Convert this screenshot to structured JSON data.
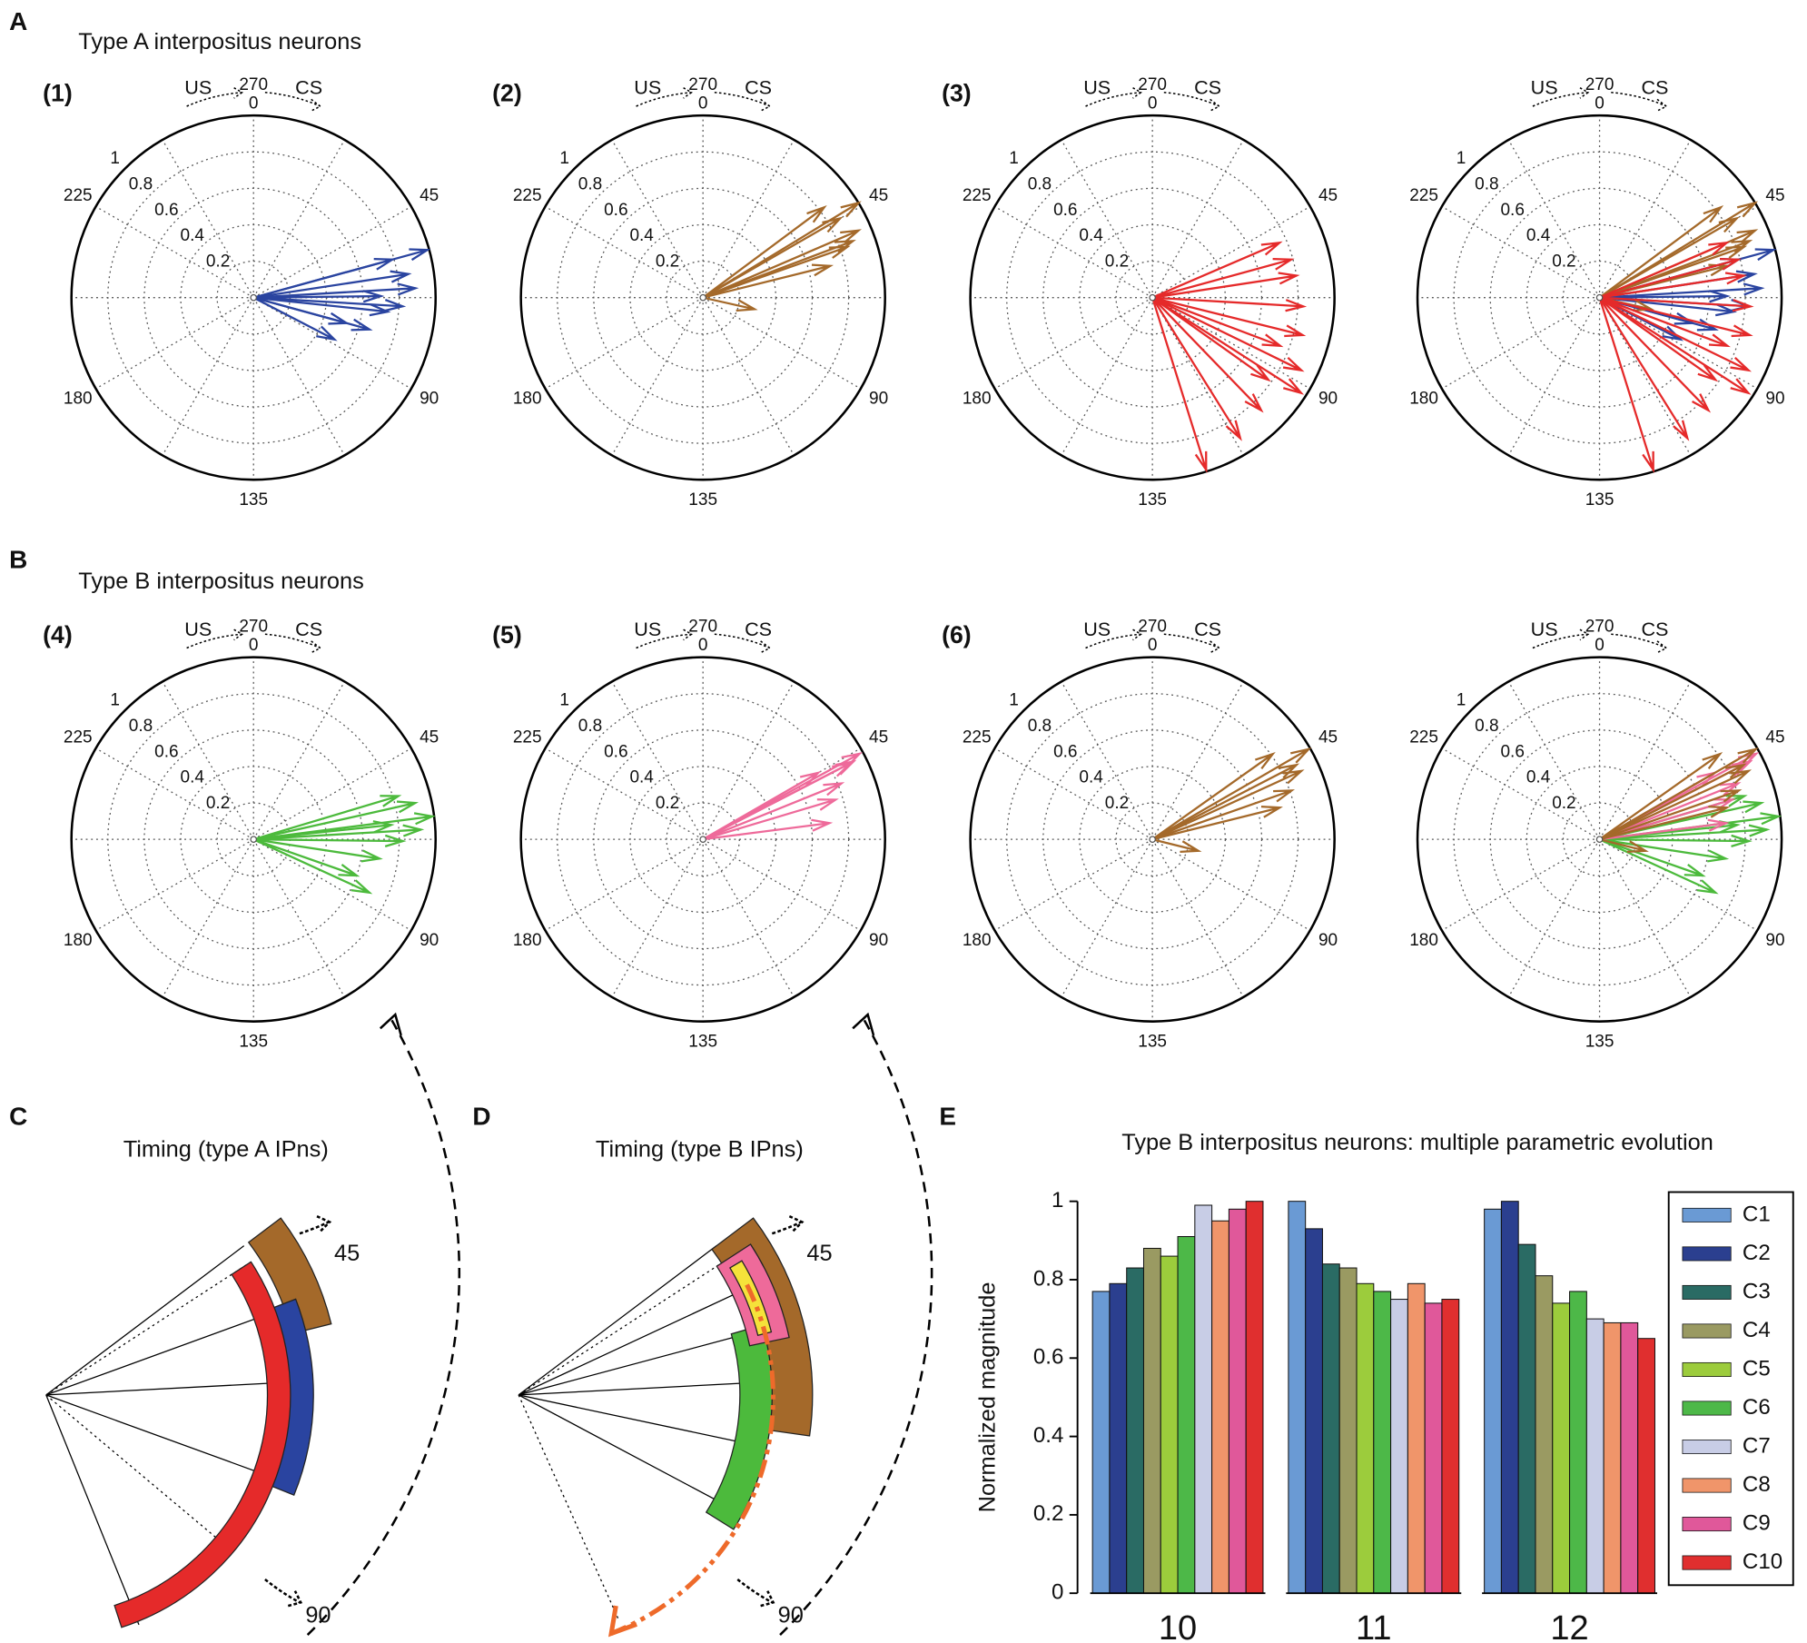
{
  "panel_labels": [
    "A",
    "B",
    "C",
    "D",
    "E"
  ],
  "polar_axes": {
    "thetalim": [
      0,
      270
    ],
    "theta_ticks": [
      0,
      45,
      90,
      135,
      180,
      225,
      270
    ],
    "rlim": [
      0,
      1
    ],
    "rticks": [
      0.2,
      0.4,
      0.6,
      0.8,
      1
    ],
    "direction_labels": [
      "US",
      "CS"
    ]
  },
  "rows": [
    {
      "title": "Type A interpositus neurons",
      "plots": [
        {
          "label": "(1)",
          "color": "#2a44a0",
          "angles": [
            56,
            61,
            70,
            72,
            88,
            79,
            65,
            56,
            67,
            79
          ],
          "magnitudes": [
            0.99,
            0.86,
            0.82,
            0.74,
            0.5,
            0.53,
            0.89,
            0.79,
            0.7,
            0.66
          ]
        },
        {
          "label": "(2)",
          "color": "#a4692a",
          "angles": [
            44,
            50,
            53,
            57,
            40,
            45,
            77,
            52
          ],
          "magnitudes": [
            1.0,
            0.93,
            0.84,
            0.72,
            0.83,
            0.87,
            0.29,
            0.88
          ]
        },
        {
          "label": "(3)",
          "color": "#e52a2a",
          "angles": [
            122,
            111,
            102,
            87,
            78,
            70,
            61,
            50,
            56,
            83,
            94,
            92
          ],
          "magnitudes": [
            0.99,
            0.91,
            0.86,
            0.91,
            0.85,
            0.83,
            0.8,
            0.76,
            0.79,
            0.75,
            0.78,
            0.97
          ]
        }
      ]
    },
    {
      "title": "Type B interpositus neurons",
      "plots": [
        {
          "label": "(4)",
          "color": "#4cba3c",
          "angles": [
            62,
            58,
            55,
            68,
            74,
            86,
            82,
            63,
            65
          ],
          "magnitudes": [
            0.99,
            0.91,
            0.83,
            0.82,
            0.7,
            0.7,
            0.6,
            0.76,
            0.92
          ]
        },
        {
          "label": "(5)",
          "color": "#ee6a9a",
          "angles": [
            46,
            47,
            51,
            55,
            62,
            47,
            45
          ],
          "magnitudes": [
            0.98,
            0.91,
            0.82,
            0.76,
            0.7,
            0.93,
            0.73
          ]
        },
        {
          "label": "(6)",
          "color": "#a4692a",
          "angles": [
            45,
            49,
            53,
            57,
            41,
            78,
            47
          ],
          "magnitudes": [
            0.99,
            0.9,
            0.81,
            0.72,
            0.81,
            0.26,
            0.89
          ]
        }
      ]
    }
  ],
  "timing": [
    {
      "title": "Timing (type A IPns)",
      "labels": [
        "45",
        "90"
      ]
    },
    {
      "title": "Timing (type B IPns)",
      "labels": [
        "45",
        "90"
      ]
    }
  ],
  "chart_data": {
    "type": "bar",
    "title": "Type B interpositus neurons: multiple parametric evolution",
    "ylabel": "Normalized magnitude",
    "categories": [
      "10",
      "11",
      "12"
    ],
    "ylim": [
      0,
      1
    ],
    "yticks": [
      0,
      0.2,
      0.4,
      0.6,
      0.8,
      1
    ],
    "series": [
      {
        "name": "C1",
        "color": "#6a9ad4",
        "values": [
          0.77,
          1.0,
          0.98
        ]
      },
      {
        "name": "C2",
        "color": "#2b3f8f",
        "values": [
          0.79,
          0.93,
          1.0
        ]
      },
      {
        "name": "C3",
        "color": "#2a6b64",
        "values": [
          0.83,
          0.84,
          0.89
        ]
      },
      {
        "name": "C4",
        "color": "#9a9a62",
        "values": [
          0.88,
          0.83,
          0.81
        ]
      },
      {
        "name": "C5",
        "color": "#9ccc3c",
        "values": [
          0.86,
          0.79,
          0.74
        ]
      },
      {
        "name": "C6",
        "color": "#4db848",
        "values": [
          0.91,
          0.77,
          0.77
        ]
      },
      {
        "name": "C7",
        "color": "#c8cde6",
        "values": [
          0.99,
          0.75,
          0.7
        ]
      },
      {
        "name": "C8",
        "color": "#f0956a",
        "values": [
          0.95,
          0.79,
          0.69
        ]
      },
      {
        "name": "C9",
        "color": "#e0589a",
        "values": [
          0.98,
          0.74,
          0.69
        ]
      },
      {
        "name": "C10",
        "color": "#e02f2f",
        "values": [
          1.0,
          0.75,
          0.65
        ]
      }
    ]
  }
}
